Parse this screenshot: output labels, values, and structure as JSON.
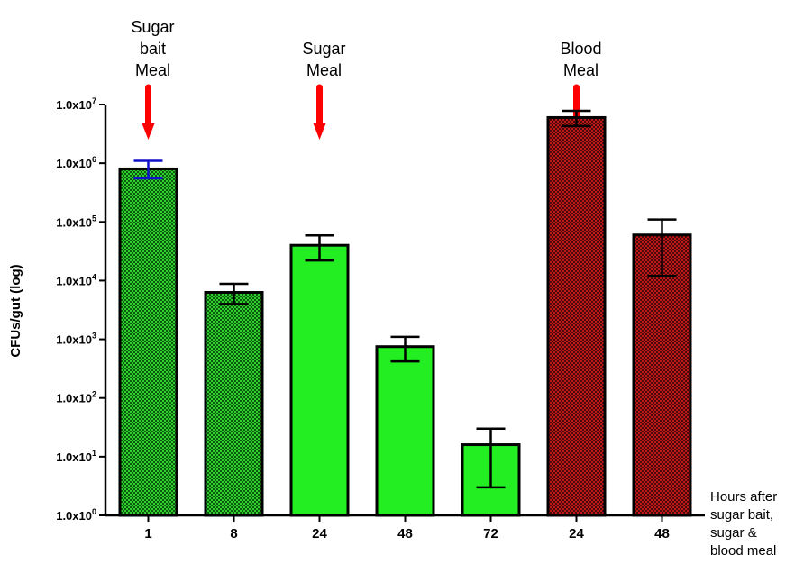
{
  "chart_data": {
    "type": "bar",
    "title": "",
    "ylabel": "CFUs/gut (log)",
    "xlabel_lines": [
      "Hours after",
      "sugar bait,",
      "sugar &",
      "blood meal"
    ],
    "yscale": "log",
    "ylim": [
      1,
      10000000
    ],
    "yticks": [
      {
        "value": 1,
        "mant": "1.0x10",
        "exp": "0"
      },
      {
        "value": 10,
        "mant": "1.0x10",
        "exp": "1"
      },
      {
        "value": 100,
        "mant": "1.0x10",
        "exp": "2"
      },
      {
        "value": 1000,
        "mant": "1.0x10",
        "exp": "3"
      },
      {
        "value": 10000,
        "mant": "1.0x10",
        "exp": "4"
      },
      {
        "value": 100000,
        "mant": "1.0x10",
        "exp": "5"
      },
      {
        "value": 1000000,
        "mant": "1.0x10",
        "exp": "6"
      },
      {
        "value": 10000000,
        "mant": "1.0x10",
        "exp": "7"
      }
    ],
    "categories": [
      "1",
      "8",
      "24",
      "48",
      "72",
      "24",
      "48"
    ],
    "values": [
      800000,
      6300,
      40000,
      750,
      16,
      6000000,
      60000
    ],
    "error_low": [
      550000,
      4000,
      22000,
      420,
      3,
      4300000,
      12000
    ],
    "error_high": [
      1100000,
      8800,
      59000,
      1100,
      30,
      7800000,
      110000
    ],
    "bar_styles": [
      "green-dotted",
      "green-dotted",
      "green-solid",
      "green-solid",
      "green-solid",
      "red-dotted",
      "red-dotted"
    ],
    "error_colors": [
      "#1010cc",
      "#000000",
      "#000000",
      "#000000",
      "#000000",
      "#000000",
      "#000000"
    ],
    "colors": {
      "green_solid": "#22ee22",
      "green_dotted_bg": "#0d5a0d",
      "green_dotted_fg": "#30d030",
      "red_dotted_bg": "#4a0a0a",
      "red_dotted_fg": "#c01818",
      "arrow": "#ff0000"
    },
    "annotations": [
      {
        "lines": [
          "Sugar",
          "bait",
          "Meal"
        ],
        "arrow_x": 0.5
      },
      {
        "lines": [
          "Sugar",
          "Meal"
        ],
        "arrow_x": 2.5
      },
      {
        "lines": [
          "Blood",
          "Meal"
        ],
        "arrow_x": 5.5
      }
    ],
    "legend": "none",
    "grid": false
  }
}
